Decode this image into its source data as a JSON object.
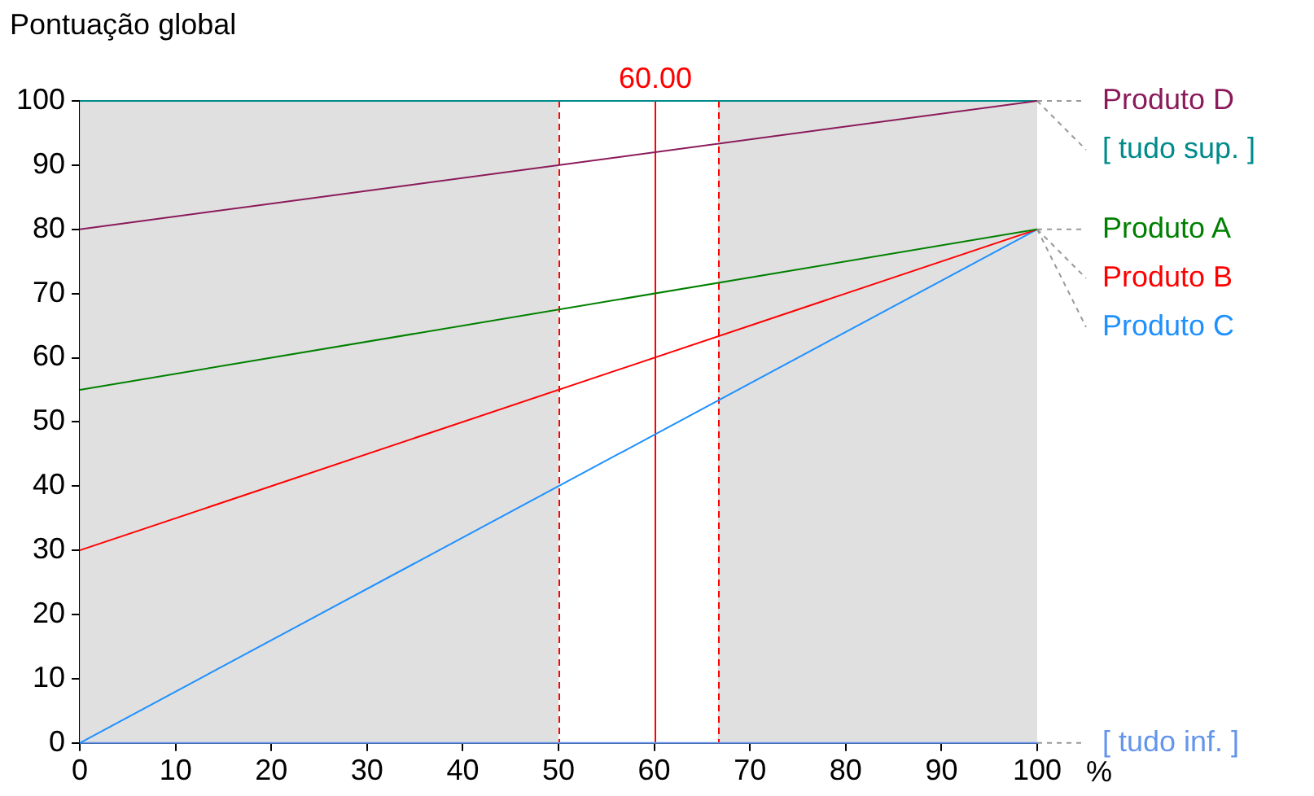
{
  "chart_data": {
    "type": "line",
    "ylabel": "Pontuação global",
    "xlabel": "%",
    "xlim": [
      0,
      100
    ],
    "xticks": [
      0,
      10,
      20,
      30,
      40,
      50,
      60,
      70,
      80,
      90,
      100
    ],
    "ylim": [
      0,
      100
    ],
    "yticks": [
      0,
      10,
      20,
      30,
      40,
      50,
      60,
      70,
      80,
      90,
      100
    ],
    "x": [
      0,
      100
    ],
    "grid": false,
    "marker": "none",
    "line_style": "solid",
    "series": [
      {
        "name": "Produto D",
        "color": "#8b1a5a",
        "values": [
          80,
          100
        ]
      },
      {
        "name": "[ tudo sup. ]",
        "color": "#008b8b",
        "values": [
          100,
          100
        ]
      },
      {
        "name": "Produto A",
        "color": "#008000",
        "values": [
          55,
          80
        ]
      },
      {
        "name": "Produto B",
        "color": "#ff0000",
        "values": [
          30,
          80
        ]
      },
      {
        "name": "Produto C",
        "color": "#1e90ff",
        "values": [
          0,
          80
        ]
      },
      {
        "name": "[ tudo inf. ]",
        "color": "#6495ed",
        "values": [
          0,
          0
        ]
      }
    ],
    "bands": [
      {
        "axis": "x",
        "from": 50,
        "to": 66.67,
        "color": "#ffffff"
      }
    ],
    "ref_lines": [
      {
        "axis": "x",
        "value": 50,
        "color": "#ff0000",
        "line_style": "dashed"
      },
      {
        "axis": "x",
        "value": 66.67,
        "color": "#ff0000",
        "line_style": "dashed"
      },
      {
        "axis": "x",
        "value": 60,
        "label": "60.00",
        "color": "#ff0000",
        "line_style": "solid"
      }
    ]
  }
}
